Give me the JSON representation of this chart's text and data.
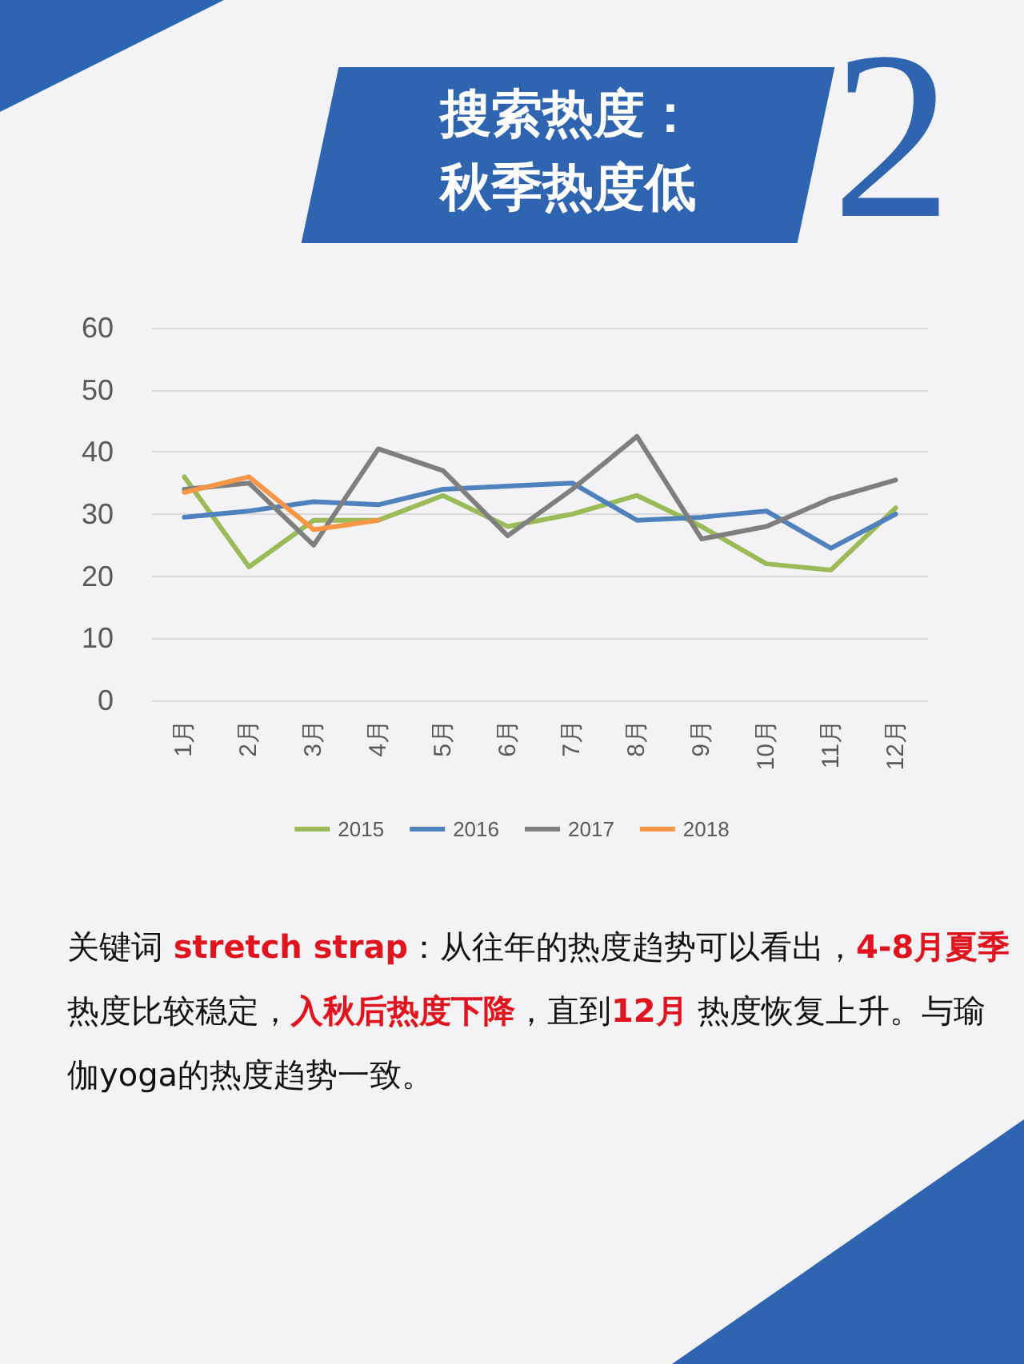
{
  "chart_data": {
    "type": "line",
    "title": "搜索热度：秋季热度低",
    "subtitle": "2",
    "categories": [
      "1月",
      "2月",
      "3月",
      "4月",
      "5月",
      "6月",
      "7月",
      "8月",
      "9月",
      "10月",
      "11月",
      "12月"
    ],
    "series": [
      {
        "name": "2015",
        "color": "#9bbb59",
        "values": [
          36,
          21.5,
          29,
          29,
          33,
          28,
          30,
          33,
          28,
          22,
          21,
          31
        ]
      },
      {
        "name": "2016",
        "color": "#4f81bd",
        "values": [
          29.5,
          30.5,
          32,
          31.5,
          34,
          34.5,
          35,
          29,
          29.5,
          30.5,
          24.5,
          30
        ]
      },
      {
        "name": "2017",
        "color": "#7f7f7f",
        "values": [
          34,
          35,
          25,
          40.5,
          37,
          26.5,
          34,
          42.5,
          26,
          28,
          32.5,
          35.5
        ]
      },
      {
        "name": "2018",
        "color": "#f79646",
        "values": [
          33.5,
          36,
          27.5,
          29,
          null,
          null,
          null,
          null,
          null,
          null,
          null,
          null
        ]
      }
    ],
    "ylim": [
      0,
      60
    ],
    "yticks": [
      0,
      10,
      20,
      30,
      40,
      50,
      60
    ],
    "grid": "y",
    "legend": "bottom",
    "marker": "none",
    "line_style": "solid",
    "annotations": [
      "关键词 ",
      "stretch  strap",
      "：从往年的热度趋势可以看出，",
      "4-8月夏季",
      "  热度比较稳定，",
      "入秋后热度下降",
      "，直到",
      "12月",
      "  热度恢复上升。与瑜伽yoga的热度趋势一致。"
    ]
  }
}
